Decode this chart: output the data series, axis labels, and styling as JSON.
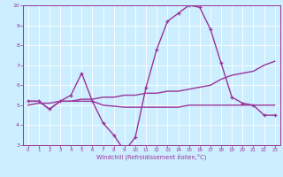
{
  "xlabel": "Windchill (Refroidissement éolien,°C)",
  "bg_color": "#cceeff",
  "line_color": "#993399",
  "x": [
    0,
    1,
    2,
    3,
    4,
    5,
    6,
    7,
    8,
    9,
    10,
    11,
    12,
    13,
    14,
    15,
    16,
    17,
    18,
    19,
    20,
    21,
    22,
    23
  ],
  "y_main": [
    5.2,
    5.2,
    4.8,
    5.2,
    5.5,
    6.6,
    5.2,
    4.1,
    3.5,
    2.7,
    3.4,
    5.9,
    7.8,
    9.2,
    9.6,
    10.0,
    9.9,
    8.8,
    7.1,
    5.4,
    5.1,
    5.0,
    4.5,
    4.5
  ],
  "y_flat": [
    5.2,
    5.2,
    4.8,
    5.2,
    5.2,
    5.2,
    5.2,
    5.0,
    4.95,
    4.9,
    4.9,
    4.9,
    4.9,
    4.9,
    4.9,
    5.0,
    5.0,
    5.0,
    5.0,
    5.0,
    5.0,
    5.0,
    5.0,
    5.0
  ],
  "y_trend": [
    5.0,
    5.1,
    5.1,
    5.2,
    5.2,
    5.3,
    5.3,
    5.4,
    5.4,
    5.5,
    5.5,
    5.6,
    5.6,
    5.7,
    5.7,
    5.8,
    5.9,
    6.0,
    6.3,
    6.5,
    6.6,
    6.7,
    7.0,
    7.2
  ],
  "ylim": [
    3,
    10
  ],
  "xlim": [
    -0.5,
    23.5
  ],
  "yticks": [
    3,
    4,
    5,
    6,
    7,
    8,
    9,
    10
  ],
  "xticks": [
    0,
    1,
    2,
    3,
    4,
    5,
    6,
    7,
    8,
    9,
    10,
    11,
    12,
    13,
    14,
    15,
    16,
    17,
    18,
    19,
    20,
    21,
    22,
    23
  ],
  "marker": "+",
  "markersize": 3.5,
  "linewidth": 1.0
}
